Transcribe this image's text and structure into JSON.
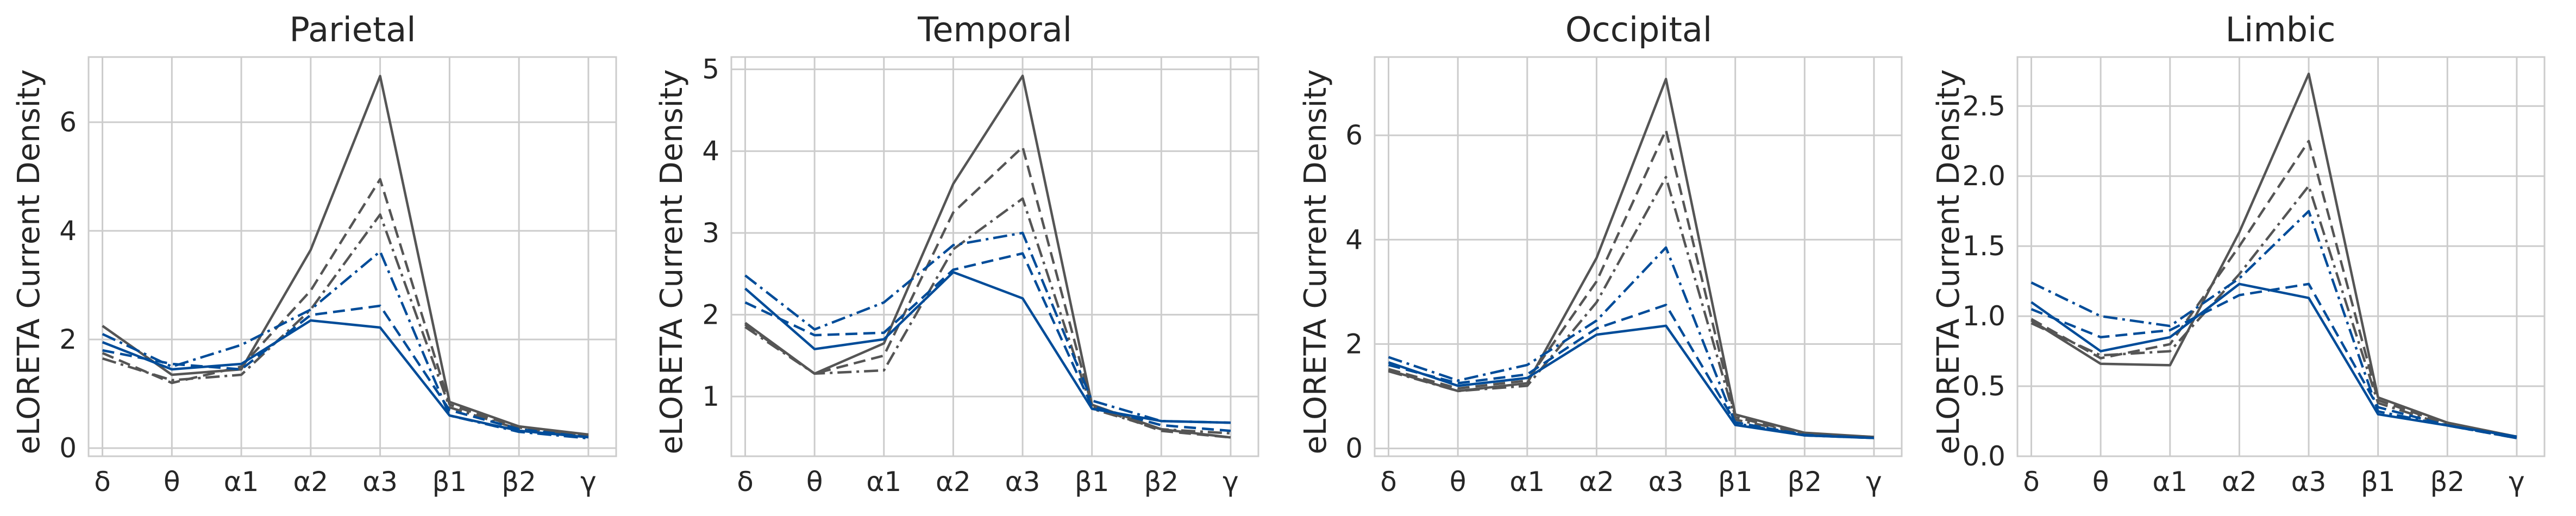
{
  "figure": {
    "series_styles": [
      {
        "color": "#555555",
        "dash": "solid"
      },
      {
        "color": "#555555",
        "dash": "dash"
      },
      {
        "color": "#555555",
        "dash": "dashdot"
      },
      {
        "color": "#004c99",
        "dash": "dash"
      },
      {
        "color": "#004c99",
        "dash": "dashdot"
      },
      {
        "color": "#004c99",
        "dash": "solid"
      }
    ],
    "colors": {
      "grid": "#cccccc",
      "spine": "#cccccc",
      "text": "#262626"
    }
  },
  "chart_data": [
    {
      "type": "line",
      "title": "Parietal",
      "ylabel": "eLORETA Current Density",
      "categories": [
        "δ",
        "θ",
        "α1",
        "α2",
        "α3",
        "β1",
        "β2",
        "γ"
      ],
      "ylim": [
        -0.15,
        7.2
      ],
      "yticks": [
        0,
        2,
        4,
        6
      ],
      "grid": true,
      "series": [
        {
          "values": [
            2.25,
            1.35,
            1.45,
            3.65,
            6.85,
            0.85,
            0.4,
            0.25
          ]
        },
        {
          "values": [
            1.75,
            1.2,
            1.5,
            2.9,
            4.95,
            0.8,
            0.38,
            0.22
          ]
        },
        {
          "values": [
            1.65,
            1.25,
            1.35,
            2.55,
            4.3,
            0.75,
            0.35,
            0.22
          ]
        },
        {
          "values": [
            1.8,
            1.55,
            1.45,
            2.45,
            2.62,
            0.7,
            0.35,
            0.2
          ]
        },
        {
          "values": [
            2.1,
            1.5,
            1.9,
            2.55,
            3.62,
            0.6,
            0.3,
            0.18
          ]
        },
        {
          "values": [
            1.95,
            1.45,
            1.55,
            2.35,
            2.22,
            0.6,
            0.32,
            0.2
          ]
        }
      ]
    },
    {
      "type": "line",
      "title": "Temporal",
      "ylabel": "eLORETA Current Density",
      "categories": [
        "δ",
        "θ",
        "α1",
        "α2",
        "α3",
        "β1",
        "β2",
        "γ"
      ],
      "ylim": [
        0.27,
        5.15
      ],
      "yticks": [
        1,
        2,
        3,
        4,
        5
      ],
      "grid": true,
      "series": [
        {
          "values": [
            1.9,
            1.28,
            1.65,
            3.6,
            4.92,
            0.9,
            0.6,
            0.5
          ]
        },
        {
          "values": [
            1.88,
            1.28,
            1.5,
            3.25,
            4.05,
            0.88,
            0.58,
            0.5
          ]
        },
        {
          "values": [
            1.85,
            1.28,
            1.32,
            2.8,
            3.42,
            0.85,
            0.6,
            0.55
          ]
        },
        {
          "values": [
            2.15,
            1.75,
            1.78,
            2.55,
            2.75,
            0.88,
            0.65,
            0.58
          ]
        },
        {
          "values": [
            2.48,
            1.82,
            2.15,
            2.85,
            3.0,
            0.95,
            0.7,
            0.68
          ]
        },
        {
          "values": [
            2.32,
            1.58,
            1.7,
            2.52,
            2.2,
            0.85,
            0.7,
            0.68
          ]
        }
      ]
    },
    {
      "type": "line",
      "title": "Occipital",
      "ylabel": "eLORETA Current Density",
      "categories": [
        "δ",
        "θ",
        "α1",
        "α2",
        "α3",
        "β1",
        "β2",
        "γ"
      ],
      "ylim": [
        -0.15,
        7.5
      ],
      "yticks": [
        0,
        2,
        4,
        6
      ],
      "grid": true,
      "series": [
        {
          "values": [
            1.5,
            1.1,
            1.25,
            3.65,
            7.08,
            0.65,
            0.3,
            0.22
          ]
        },
        {
          "values": [
            1.52,
            1.15,
            1.3,
            3.2,
            6.1,
            0.6,
            0.28,
            0.22
          ]
        },
        {
          "values": [
            1.48,
            1.1,
            1.2,
            2.8,
            5.2,
            0.55,
            0.28,
            0.2
          ]
        },
        {
          "values": [
            1.6,
            1.25,
            1.42,
            2.3,
            2.75,
            0.5,
            0.26,
            0.2
          ]
        },
        {
          "values": [
            1.75,
            1.3,
            1.6,
            2.45,
            3.85,
            0.48,
            0.25,
            0.2
          ]
        },
        {
          "values": [
            1.65,
            1.2,
            1.35,
            2.18,
            2.35,
            0.45,
            0.25,
            0.2
          ]
        }
      ]
    },
    {
      "type": "line",
      "title": "Limbic",
      "ylabel": "eLORETA Current Density",
      "categories": [
        "δ",
        "θ",
        "α1",
        "α2",
        "α3",
        "β1",
        "β2",
        "γ"
      ],
      "ylim": [
        0.0,
        2.85
      ],
      "yticks": [
        0.0,
        0.5,
        1.0,
        1.5,
        2.0,
        2.5
      ],
      "grid": true,
      "series": [
        {
          "values": [
            0.97,
            0.66,
            0.65,
            1.6,
            2.73,
            0.42,
            0.24,
            0.14
          ]
        },
        {
          "values": [
            0.98,
            0.7,
            0.8,
            1.5,
            2.25,
            0.4,
            0.23,
            0.14
          ]
        },
        {
          "values": [
            0.95,
            0.72,
            0.75,
            1.3,
            1.93,
            0.38,
            0.22,
            0.13
          ]
        },
        {
          "values": [
            1.05,
            0.85,
            0.9,
            1.15,
            1.23,
            0.35,
            0.22,
            0.13
          ]
        },
        {
          "values": [
            1.24,
            1.0,
            0.93,
            1.27,
            1.75,
            0.32,
            0.22,
            0.13
          ]
        },
        {
          "values": [
            1.1,
            0.75,
            0.85,
            1.23,
            1.13,
            0.3,
            0.22,
            0.14
          ]
        }
      ]
    }
  ]
}
